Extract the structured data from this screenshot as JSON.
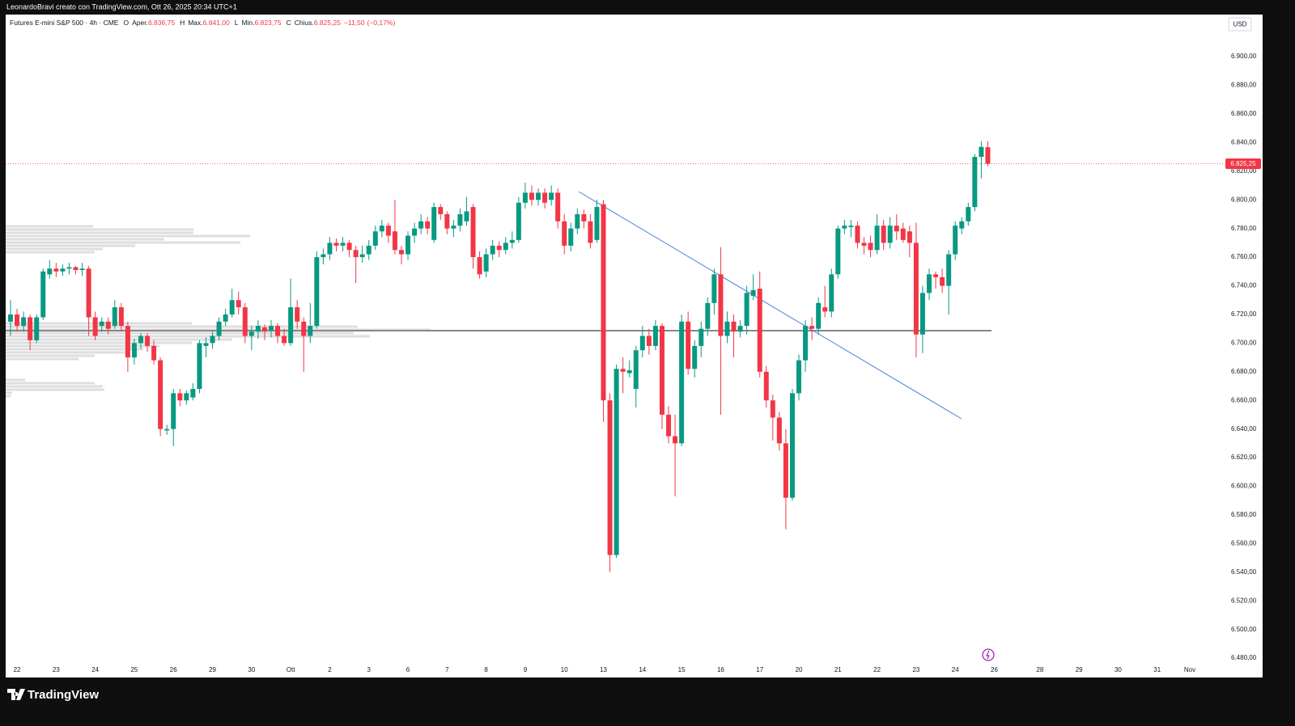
{
  "chart_data": {
    "type": "candlestick",
    "credit": "LeonardoBravi creato con TradingView.com, Ott 26, 2025 20:34 UTC+1",
    "title": "Futures E-mini S&P 500 · 4h · CME",
    "legend": [
      {
        "key": "O",
        "name": "Aper.",
        "value": {
          "value": 6836.75,
          "label": "6.836,75"
        }
      },
      {
        "key": "H",
        "name": "Max.",
        "value": {
          "value": 6841.0,
          "label": "6.841,00"
        }
      },
      {
        "key": "L",
        "name": "Min.",
        "value": {
          "value": 6823.75,
          "label": "6.823,75"
        }
      },
      {
        "key": "C",
        "name": "Chius.",
        "value": {
          "value": 6825.25,
          "label": "6.825,25"
        }
      }
    ],
    "change": {
      "value": -11.5,
      "label": "−11,50"
    },
    "change_pct": {
      "value": -0.17,
      "label": "(−0,17%)"
    },
    "currency": "USD",
    "brand": "TradingView",
    "up_color": "#089981",
    "down_color": "#f23645",
    "grid": false,
    "last_price": {
      "value": 6825.25,
      "label": "6.825,25"
    },
    "ylim": [
      6466.5,
      6929.4
    ],
    "yticks": [
      {
        "value": 6480,
        "label": "6.480,00"
      },
      {
        "value": 6500,
        "label": "6.500,00"
      },
      {
        "value": 6520,
        "label": "6.520,00"
      },
      {
        "value": 6540,
        "label": "6.540,00"
      },
      {
        "value": 6560,
        "label": "6.560,00"
      },
      {
        "value": 6580,
        "label": "6.580,00"
      },
      {
        "value": 6600,
        "label": "6.600,00"
      },
      {
        "value": 6620,
        "label": "6.620,00"
      },
      {
        "value": 6640,
        "label": "6.640,00"
      },
      {
        "value": 6660,
        "label": "6.660,00"
      },
      {
        "value": 6680,
        "label": "6.680,00"
      },
      {
        "value": 6700,
        "label": "6.700,00"
      },
      {
        "value": 6720,
        "label": "6.720,00"
      },
      {
        "value": 6740,
        "label": "6.740,00"
      },
      {
        "value": 6760,
        "label": "6.760,00"
      },
      {
        "value": 6780,
        "label": "6.780,00"
      },
      {
        "value": 6800,
        "label": "6.800,00"
      },
      {
        "value": 6820,
        "label": "6.820,00"
      },
      {
        "value": 6840,
        "label": "6.840,00"
      },
      {
        "value": 6860,
        "label": "6.860,00"
      },
      {
        "value": 6880,
        "label": "6.880,00"
      },
      {
        "value": 6900,
        "label": "6.900,00"
      }
    ],
    "categories": [
      null,
      "22",
      null,
      null,
      null,
      null,
      null,
      "23",
      null,
      null,
      null,
      null,
      null,
      "24",
      null,
      null,
      null,
      null,
      null,
      "25",
      null,
      null,
      null,
      null,
      null,
      "26",
      null,
      null,
      null,
      null,
      null,
      "29",
      null,
      null,
      null,
      null,
      null,
      "30",
      null,
      null,
      null,
      null,
      null,
      "Ott",
      null,
      null,
      null,
      null,
      null,
      "2",
      null,
      null,
      null,
      null,
      null,
      "3",
      null,
      null,
      null,
      null,
      null,
      "6",
      null,
      null,
      null,
      null,
      null,
      "7",
      null,
      null,
      null,
      null,
      null,
      "8",
      null,
      null,
      null,
      null,
      null,
      "9",
      null,
      null,
      null,
      null,
      null,
      "10",
      null,
      null,
      null,
      null,
      null,
      "13",
      null,
      null,
      null,
      null,
      null,
      "14",
      null,
      null,
      null,
      null,
      null,
      "15",
      null,
      null,
      null,
      null,
      null,
      "16",
      null,
      null,
      null,
      null,
      null,
      "17",
      null,
      null,
      null,
      null,
      null,
      "20",
      null,
      null,
      null,
      null,
      null,
      "21",
      null,
      null,
      null,
      null,
      null,
      "22",
      null,
      null,
      null,
      null,
      null,
      "23",
      null,
      null,
      null,
      null,
      null,
      "24",
      null,
      null,
      null,
      null,
      null,
      "26",
      null,
      null,
      null,
      null,
      null,
      null,
      "28",
      null,
      null,
      null,
      null,
      null,
      "29",
      null,
      null,
      null,
      null,
      null,
      "30",
      null,
      null,
      null,
      null,
      null,
      "31",
      null,
      null,
      null,
      null,
      "Nov"
    ],
    "ohlc": [
      [
        6715,
        6730,
        6705,
        6720
      ],
      [
        6720,
        6724,
        6708,
        6712
      ],
      [
        6712,
        6722,
        6708,
        6718
      ],
      [
        6718,
        6720,
        6695,
        6702
      ],
      [
        6702,
        6720,
        6700,
        6718
      ],
      [
        6718,
        6752,
        6716,
        6750
      ],
      [
        6748,
        6758,
        6745,
        6752
      ],
      [
        6752,
        6756,
        6746,
        6750
      ],
      [
        6750,
        6755,
        6747,
        6752
      ],
      [
        6752,
        6756,
        6748,
        6753
      ],
      [
        6753,
        6754,
        6748,
        6751
      ],
      [
        6751,
        6756,
        6747,
        6752
      ],
      [
        6752,
        6754,
        6705,
        6718
      ],
      [
        6718,
        6722,
        6702,
        6705
      ],
      [
        6712,
        6718,
        6708,
        6715
      ],
      [
        6715,
        6718,
        6706,
        6710
      ],
      [
        6712,
        6730,
        6710,
        6725
      ],
      [
        6725,
        6728,
        6708,
        6712
      ],
      [
        6712,
        6715,
        6680,
        6690
      ],
      [
        6690,
        6703,
        6685,
        6700
      ],
      [
        6700,
        6707,
        6696,
        6705
      ],
      [
        6705,
        6707,
        6694,
        6698
      ],
      [
        6698,
        6702,
        6685,
        6688
      ],
      [
        6688,
        6690,
        6635,
        6640
      ],
      [
        6639,
        6643,
        6636,
        6640
      ],
      [
        6640,
        6668,
        6628,
        6665
      ],
      [
        6665,
        6668,
        6656,
        6660
      ],
      [
        6660,
        6667,
        6657,
        6665
      ],
      [
        6662,
        6672,
        6660,
        6668
      ],
      [
        6668,
        6702,
        6665,
        6700
      ],
      [
        6698,
        6704,
        6690,
        6700
      ],
      [
        6700,
        6708,
        6696,
        6705
      ],
      [
        6705,
        6718,
        6702,
        6715
      ],
      [
        6715,
        6724,
        6712,
        6720
      ],
      [
        6720,
        6738,
        6718,
        6730
      ],
      [
        6730,
        6736,
        6720,
        6725
      ],
      [
        6725,
        6728,
        6700,
        6705
      ],
      [
        6705,
        6712,
        6695,
        6708
      ],
      [
        6708,
        6716,
        6703,
        6712
      ],
      [
        6711,
        6713,
        6702,
        6708
      ],
      [
        6709,
        6716,
        6704,
        6712
      ],
      [
        6712,
        6714,
        6700,
        6705
      ],
      [
        6705,
        6710,
        6698,
        6700
      ],
      [
        6700,
        6745,
        6698,
        6725
      ],
      [
        6725,
        6730,
        6710,
        6715
      ],
      [
        6715,
        6718,
        6680,
        6705
      ],
      [
        6705,
        6728,
        6700,
        6712
      ],
      [
        6712,
        6764,
        6710,
        6760
      ],
      [
        6760,
        6766,
        6755,
        6762
      ],
      [
        6762,
        6774,
        6758,
        6770
      ],
      [
        6770,
        6773,
        6764,
        6768
      ],
      [
        6768,
        6774,
        6764,
        6770
      ],
      [
        6770,
        6772,
        6760,
        6765
      ],
      [
        6765,
        6768,
        6742,
        6760
      ],
      [
        6760,
        6768,
        6756,
        6762
      ],
      [
        6762,
        6772,
        6758,
        6768
      ],
      [
        6768,
        6782,
        6765,
        6778
      ],
      [
        6778,
        6786,
        6774,
        6782
      ],
      [
        6782,
        6784,
        6770,
        6775
      ],
      [
        6778,
        6800,
        6762,
        6765
      ],
      [
        6765,
        6768,
        6755,
        6762
      ],
      [
        6762,
        6778,
        6758,
        6775
      ],
      [
        6775,
        6784,
        6770,
        6780
      ],
      [
        6780,
        6790,
        6776,
        6785
      ],
      [
        6785,
        6788,
        6776,
        6780
      ],
      [
        6772,
        6798,
        6770,
        6795
      ],
      [
        6795,
        6797,
        6786,
        6790
      ],
      [
        6790,
        6792,
        6776,
        6780
      ],
      [
        6780,
        6786,
        6774,
        6782
      ],
      [
        6782,
        6794,
        6778,
        6790
      ],
      [
        6785,
        6802,
        6782,
        6792
      ],
      [
        6795,
        6797,
        6752,
        6760
      ],
      [
        6760,
        6764,
        6745,
        6748
      ],
      [
        6750,
        6766,
        6746,
        6762
      ],
      [
        6762,
        6772,
        6758,
        6768
      ],
      [
        6768,
        6771,
        6760,
        6765
      ],
      [
        6765,
        6774,
        6762,
        6770
      ],
      [
        6770,
        6778,
        6766,
        6772
      ],
      [
        6772,
        6802,
        6770,
        6798
      ],
      [
        6798,
        6812,
        6794,
        6805
      ],
      [
        6805,
        6810,
        6796,
        6800
      ],
      [
        6800,
        6808,
        6796,
        6805
      ],
      [
        6805,
        6808,
        6794,
        6798
      ],
      [
        6800,
        6810,
        6796,
        6805
      ],
      [
        6805,
        6808,
        6780,
        6785
      ],
      [
        6785,
        6790,
        6762,
        6768
      ],
      [
        6768,
        6784,
        6764,
        6780
      ],
      [
        6780,
        6794,
        6776,
        6790
      ],
      [
        6790,
        6793,
        6780,
        6785
      ],
      [
        6785,
        6790,
        6766,
        6770
      ],
      [
        6772,
        6800,
        6770,
        6795
      ],
      [
        6797,
        6800,
        6645,
        6660
      ],
      [
        6660,
        6665,
        6540,
        6552
      ],
      [
        6552,
        6685,
        6550,
        6682
      ],
      [
        6682,
        6690,
        6665,
        6680
      ],
      [
        6679,
        6688,
        6676,
        6681
      ],
      [
        6668,
        6698,
        6655,
        6695
      ],
      [
        6695,
        6712,
        6690,
        6705
      ],
      [
        6705,
        6710,
        6692,
        6698
      ],
      [
        6698,
        6716,
        6695,
        6712
      ],
      [
        6712,
        6714,
        6640,
        6650
      ],
      [
        6650,
        6656,
        6630,
        6635
      ],
      [
        6635,
        6650,
        6593,
        6630
      ],
      [
        6630,
        6720,
        6628,
        6715
      ],
      [
        6715,
        6722,
        6678,
        6682
      ],
      [
        6682,
        6702,
        6676,
        6698
      ],
      [
        6698,
        6715,
        6690,
        6710
      ],
      [
        6710,
        6732,
        6705,
        6728
      ],
      [
        6728,
        6752,
        6720,
        6748
      ],
      [
        6748,
        6767,
        6650,
        6705
      ],
      [
        6705,
        6722,
        6700,
        6715
      ],
      [
        6715,
        6720,
        6690,
        6708
      ],
      [
        6708,
        6716,
        6704,
        6712
      ],
      [
        6712,
        6740,
        6706,
        6735
      ],
      [
        6733,
        6748,
        6730,
        6737
      ],
      [
        6738,
        6750,
        6676,
        6680
      ],
      [
        6680,
        6684,
        6655,
        6660
      ],
      [
        6660,
        6664,
        6632,
        6648
      ],
      [
        6648,
        6652,
        6625,
        6630
      ],
      [
        6630,
        6640,
        6570,
        6592
      ],
      [
        6592,
        6668,
        6590,
        6665
      ],
      [
        6665,
        6692,
        6660,
        6688
      ],
      [
        6688,
        6716,
        6680,
        6712
      ],
      [
        6712,
        6718,
        6702,
        6710
      ],
      [
        6710,
        6732,
        6706,
        6728
      ],
      [
        6725,
        6740,
        6718,
        6722
      ],
      [
        6722,
        6752,
        6718,
        6748
      ],
      [
        6748,
        6782,
        6745,
        6780
      ],
      [
        6780,
        6786,
        6776,
        6782
      ],
      [
        6781,
        6786,
        6774,
        6782
      ],
      [
        6782,
        6785,
        6766,
        6770
      ],
      [
        6770,
        6774,
        6762,
        6768
      ],
      [
        6770,
        6775,
        6760,
        6765
      ],
      [
        6765,
        6790,
        6762,
        6782
      ],
      [
        6782,
        6786,
        6765,
        6770
      ],
      [
        6770,
        6788,
        6766,
        6782
      ],
      [
        6782,
        6790,
        6772,
        6778
      ],
      [
        6780,
        6784,
        6770,
        6772
      ],
      [
        6778,
        6782,
        6760,
        6770
      ],
      [
        6770,
        6784,
        6690,
        6706
      ],
      [
        6706,
        6740,
        6693,
        6735
      ],
      [
        6735,
        6752,
        6730,
        6748
      ],
      [
        6748,
        6750,
        6738,
        6746
      ],
      [
        6746,
        6752,
        6735,
        6740
      ],
      [
        6740,
        6765,
        6720,
        6762
      ],
      [
        6762,
        6785,
        6758,
        6782
      ],
      [
        6780,
        6788,
        6776,
        6785
      ],
      [
        6785,
        6798,
        6782,
        6795
      ],
      [
        6795,
        6832,
        6792,
        6830
      ],
      [
        6830,
        6841,
        6815,
        6837
      ],
      [
        6836.75,
        6841,
        6823.75,
        6825.25
      ],
      null,
      null,
      null,
      null,
      null,
      null,
      null,
      null,
      null,
      null,
      null,
      null,
      null,
      null,
      null,
      null,
      null,
      null,
      null,
      null,
      null,
      null,
      null,
      null,
      null,
      null,
      null,
      null,
      null,
      null,
      null
    ]
  }
}
